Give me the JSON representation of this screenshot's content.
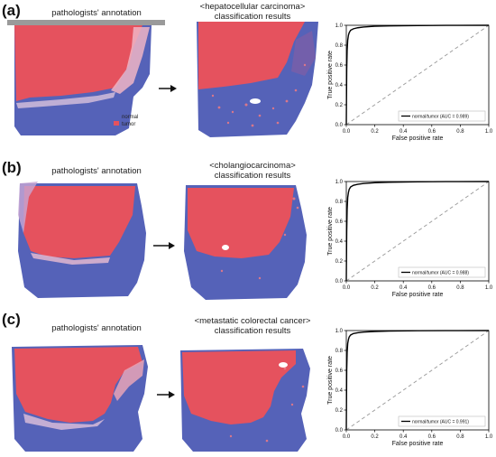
{
  "colors": {
    "tumor": "#e5525e",
    "normal": "#5562b8",
    "tissue_light": "#c9c4dd",
    "roc_line": "#000000",
    "diagonal": "#999999"
  },
  "legend": {
    "normal_label": "normal",
    "tumor_label": "tumor"
  },
  "panels": [
    {
      "label": "(a)",
      "annotation_title": "pathologists' annotation",
      "results_title_line1": "<hepatocellular carcinoma>",
      "results_title_line2": "classification results",
      "arrow_icon": "arrow-right-icon"
    },
    {
      "label": "(b)",
      "annotation_title": "pathologists' annotation",
      "results_title_line1": "<cholangiocarcinoma>",
      "results_title_line2": "classification results",
      "arrow_icon": "arrow-right-icon"
    },
    {
      "label": "(c)",
      "annotation_title": "pathologists' annotation",
      "results_title_line1": "<metastatic colorectal cancer>",
      "results_title_line2": "classification results",
      "arrow_icon": "arrow-right-icon"
    }
  ],
  "chart_data": [
    {
      "type": "line",
      "xlabel": "False positive rate",
      "ylabel": "True positive rate",
      "xlim": [
        0,
        1
      ],
      "ylim": [
        0,
        1
      ],
      "ticks": [
        "0.0",
        "0.2",
        "0.4",
        "0.6",
        "0.8",
        "1.0"
      ],
      "tick_values": [
        0,
        0.2,
        0.4,
        0.6,
        0.8,
        1.0
      ],
      "legend_position": "lower-right",
      "series": [
        {
          "name": "normal/tumor (AUC = 0.989)",
          "x": [
            0,
            0.003,
            0.006,
            0.01,
            0.015,
            0.02,
            0.03,
            0.05,
            0.08,
            0.12,
            0.2,
            0.3,
            0.5,
            0.7,
            1.0
          ],
          "y": [
            0,
            0.55,
            0.75,
            0.85,
            0.9,
            0.925,
            0.95,
            0.965,
            0.975,
            0.982,
            0.99,
            0.994,
            0.997,
            0.999,
            1.0
          ]
        }
      ]
    },
    {
      "type": "line",
      "xlabel": "False positive rate",
      "ylabel": "True positive rate",
      "xlim": [
        0,
        1
      ],
      "ylim": [
        0,
        1
      ],
      "ticks": [
        "0.0",
        "0.2",
        "0.4",
        "0.6",
        "0.8",
        "1.0"
      ],
      "tick_values": [
        0,
        0.2,
        0.4,
        0.6,
        0.8,
        1.0
      ],
      "legend_position": "lower-right",
      "series": [
        {
          "name": "normal/tumor (AUC = 0.988)",
          "x": [
            0,
            0.003,
            0.006,
            0.01,
            0.015,
            0.02,
            0.03,
            0.05,
            0.08,
            0.12,
            0.2,
            0.3,
            0.5,
            0.7,
            1.0
          ],
          "y": [
            0,
            0.5,
            0.72,
            0.84,
            0.89,
            0.92,
            0.945,
            0.962,
            0.972,
            0.98,
            0.988,
            0.993,
            0.997,
            0.999,
            1.0
          ]
        }
      ]
    },
    {
      "type": "line",
      "xlabel": "False positive rate",
      "ylabel": "True positive rate",
      "xlim": [
        0,
        1
      ],
      "ylim": [
        0,
        1
      ],
      "ticks": [
        "0.0",
        "0.2",
        "0.4",
        "0.6",
        "0.8",
        "1.0"
      ],
      "tick_values": [
        0,
        0.2,
        0.4,
        0.6,
        0.8,
        1.0
      ],
      "legend_position": "lower-right",
      "series": [
        {
          "name": "normal/tumor (AUC = 0.991)",
          "x": [
            0,
            0.003,
            0.006,
            0.01,
            0.015,
            0.02,
            0.03,
            0.05,
            0.08,
            0.12,
            0.2,
            0.3,
            0.5,
            0.7,
            1.0
          ],
          "y": [
            0,
            0.6,
            0.78,
            0.87,
            0.91,
            0.935,
            0.955,
            0.97,
            0.978,
            0.985,
            0.991,
            0.995,
            0.998,
            0.999,
            1.0
          ]
        }
      ]
    }
  ]
}
